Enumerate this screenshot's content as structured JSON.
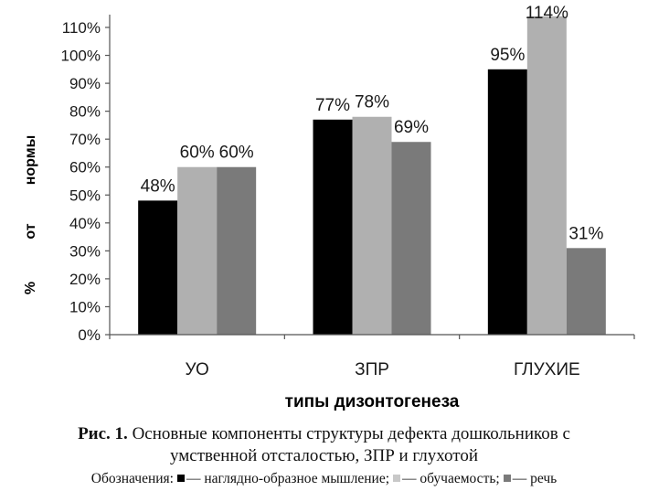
{
  "chart_data": {
    "type": "bar",
    "categories": [
      "УО",
      "ЗПР",
      "ГЛУХИЕ"
    ],
    "series": [
      {
        "name": "наглядно-образное мышление",
        "values": [
          48,
          77,
          95
        ],
        "labels": [
          "48%",
          "77%",
          "95%"
        ],
        "color": "#000000"
      },
      {
        "name": "обучаемость",
        "values": [
          60,
          78,
          114
        ],
        "labels": [
          "60%",
          "78%",
          "114%"
        ],
        "color": "#b0b0b0"
      },
      {
        "name": "речь",
        "values": [
          60,
          69,
          31
        ],
        "labels": [
          "60%",
          "69%",
          "31%"
        ],
        "color": "#7a7a7a"
      }
    ],
    "xlabel": "типы дизонтогенеза",
    "ylabel_words": [
      "%",
      "от",
      "нормы"
    ],
    "ylim": [
      0,
      110
    ],
    "yticks": [
      "0%",
      "10%",
      "20%",
      "30%",
      "40%",
      "50%",
      "60%",
      "70%",
      "80%",
      "90%",
      "100%",
      "110%"
    ],
    "grid": false
  },
  "caption": {
    "figure_label": "Рис. 1.",
    "line1": "Основные компоненты структуры дефекта дошкольников с",
    "line2": "умственной отсталостью, ЗПР и глухотой"
  },
  "legend": {
    "prefix": "Обозначения:",
    "dash": "—",
    "items": [
      {
        "text": "наглядно-образное мышление;",
        "color": "#000000"
      },
      {
        "text": "обучаемость;",
        "color": "#c8c8c8"
      },
      {
        "text": "речь",
        "color": "#7a7a7a"
      }
    ]
  }
}
